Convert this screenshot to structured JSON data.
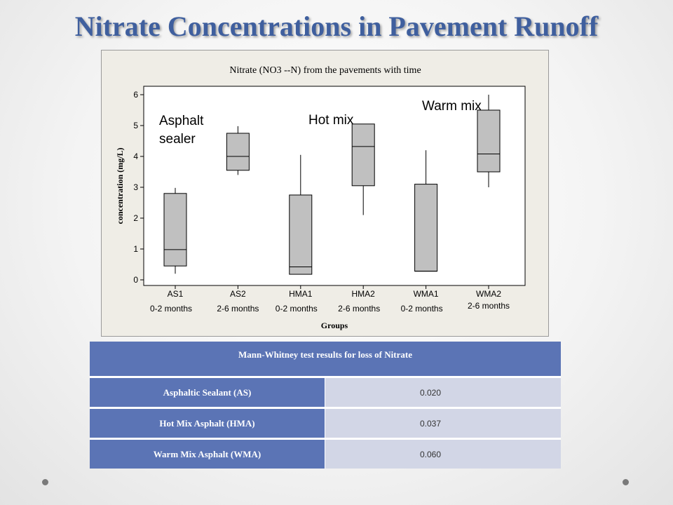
{
  "slide": {
    "title": "Nitrate Concentrations in Pavement Runoff"
  },
  "chart_data": {
    "type": "box",
    "title": "Nitrate (NO3 --N) from the pavements with time",
    "xlabel": "Groups",
    "ylabel": "concentration (mg/L)",
    "ylim": [
      0,
      6
    ],
    "yticks": [
      0,
      1,
      2,
      3,
      4,
      5,
      6
    ],
    "categories": [
      {
        "name": "AS1",
        "sub": "0-2 months"
      },
      {
        "name": "AS2",
        "sub": "2-6 months"
      },
      {
        "name": "HMA1",
        "sub": "0-2 months"
      },
      {
        "name": "HMA2",
        "sub": "2-6 months"
      },
      {
        "name": "WMA1",
        "sub": "0-2 months"
      },
      {
        "name": "WMA2",
        "sub": "2-6 months"
      }
    ],
    "boxes": [
      {
        "min": 0.2,
        "q1": 0.45,
        "median": 0.98,
        "q3": 2.8,
        "max": 2.98
      },
      {
        "min": 3.4,
        "q1": 3.55,
        "median": 4.0,
        "q3": 4.75,
        "max": 4.98
      },
      {
        "min": 0.18,
        "q1": 0.18,
        "median": 0.42,
        "q3": 2.75,
        "max": 4.05
      },
      {
        "min": 2.1,
        "q1": 3.05,
        "median": 4.32,
        "q3": 5.05,
        "max": 5.05
      },
      {
        "min": 0.28,
        "q1": 0.28,
        "median": 0.28,
        "q3": 3.1,
        "max": 4.2
      },
      {
        "min": 3.0,
        "q1": 3.5,
        "median": 4.08,
        "q3": 5.5,
        "max": 6.0
      }
    ],
    "annotations": [
      {
        "lines": [
          "Asphalt",
          "sealer"
        ]
      },
      {
        "lines": [
          "Hot mix"
        ]
      },
      {
        "lines": [
          "Warm mix"
        ]
      }
    ],
    "box_color": "#c0c0c0",
    "grid": false
  },
  "table": {
    "header": "Mann-Whitney test results for loss of Nitrate",
    "rows": [
      {
        "label": "Asphaltic Sealant (AS)",
        "value": "0.020"
      },
      {
        "label": "Hot Mix Asphalt (HMA)",
        "value": "0.037"
      },
      {
        "label": "Warm Mix Asphalt (WMA)",
        "value": "0.060"
      }
    ]
  }
}
